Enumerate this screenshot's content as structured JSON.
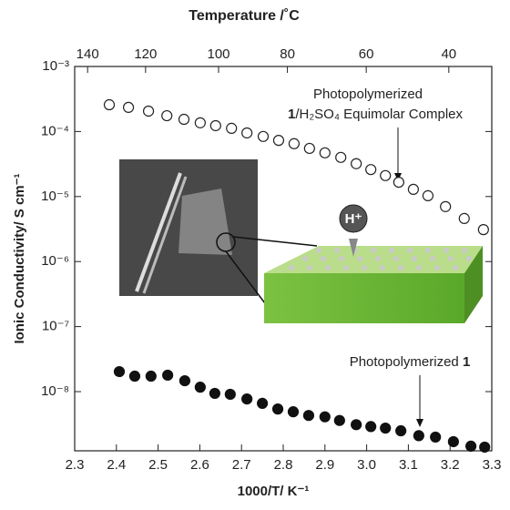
{
  "chart_data": {
    "type": "scatter",
    "x_label": "1000/T/ K⁻¹",
    "y_label": "Ionic Conductivity/ S cm⁻¹",
    "x2_label": "Temperature /˚C",
    "log_y": true,
    "xlim": [
      2.3,
      3.3
    ],
    "xticks": [
      2.3,
      2.4,
      2.5,
      2.6,
      2.7,
      2.8,
      2.9,
      {
        "value": 3.0,
        "label": "3.0"
      },
      3.1,
      3.2,
      3.3
    ],
    "x2ticks": [
      {
        "value": 2.331,
        "label": "140"
      },
      {
        "value": 2.47,
        "label": "120"
      },
      {
        "value": 2.645,
        "label": "100"
      },
      {
        "value": 2.81,
        "label": "80"
      },
      {
        "value": 2.999,
        "label": "60"
      },
      {
        "value": 3.197,
        "label": "40"
      }
    ],
    "ylim": [
      1.23e-09,
      0.001
    ],
    "yticks": [
      {
        "value": 0.001,
        "label": "10⁻³"
      },
      {
        "value": 0.0001,
        "label": "10⁻⁴"
      },
      {
        "value": 1e-05,
        "label": "10⁻⁵"
      },
      {
        "value": 1e-06,
        "label": "10⁻⁶"
      },
      {
        "value": 1e-07,
        "label": "10⁻⁷"
      },
      {
        "value": 1e-08,
        "label": "10⁻⁸"
      }
    ],
    "series": [
      {
        "marker": "open",
        "color": "#222222",
        "x": [
          2.383,
          2.429,
          2.477,
          2.521,
          2.562,
          2.601,
          2.638,
          2.676,
          2.713,
          2.752,
          2.789,
          2.826,
          2.863,
          2.9,
          2.938,
          2.975,
          3.01,
          3.045,
          3.077,
          3.112,
          3.147,
          3.189,
          3.234,
          3.28
        ],
        "values": [
          0.000258,
          0.000235,
          0.000206,
          0.000175,
          0.000154,
          0.000136,
          0.000123,
          0.000112,
          9.5e-05,
          8.4e-05,
          7.3e-05,
          6.5e-05,
          5.5e-05,
          4.7e-05,
          4e-05,
          3.2e-05,
          2.6e-05,
          2.1e-05,
          1.66e-05,
          1.29e-05,
          1.03e-05,
          7e-06,
          4.6e-06,
          3.1e-06
        ]
      },
      {
        "marker": "filled",
        "color": "#111111",
        "x": [
          2.407,
          2.444,
          2.483,
          2.523,
          2.564,
          2.601,
          2.636,
          2.673,
          2.713,
          2.75,
          2.787,
          2.824,
          2.861,
          2.9,
          2.935,
          2.975,
          3.01,
          3.045,
          3.082,
          3.125,
          3.165,
          3.208,
          3.25,
          3.283
        ],
        "values": [
          2.03e-08,
          1.73e-08,
          1.73e-08,
          1.79e-08,
          1.47e-08,
          1.17e-08,
          9.4e-09,
          9.1e-09,
          7.7e-09,
          6.6e-09,
          5.4e-09,
          4.9e-09,
          4.3e-09,
          4.1e-09,
          3.6e-09,
          3.1e-09,
          2.9e-09,
          2.75e-09,
          2.5e-09,
          2.1e-09,
          2e-09,
          1.7e-09,
          1.45e-09,
          1.4e-09
        ]
      }
    ],
    "annotations": [
      "Photopolymerized",
      "1",
      "/H₂SO₄ Equimolar Complex",
      "Photopolymerized ",
      "1"
    ],
    "inset_label": "H⁺"
  }
}
